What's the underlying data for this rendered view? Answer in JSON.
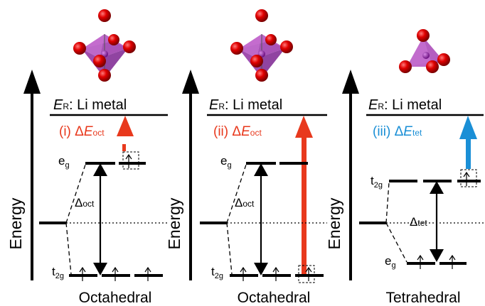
{
  "y_axis_label": "Energy",
  "panels": [
    {
      "reference_E": "E",
      "reference_sub": "R",
      "reference_text": ": Li metal",
      "transition_prefix": "(i) Δ",
      "transition_E": "E",
      "transition_sub": "oct",
      "transition_color": "#e8391d",
      "split_label": "Δ",
      "split_sub": "oct",
      "upper_level": "e",
      "upper_sub": "g",
      "lower_level": "t",
      "lower_sub": "2g",
      "geometry_label": "Octahedral"
    },
    {
      "reference_E": "E",
      "reference_sub": "R",
      "reference_text": ": Li metal",
      "transition_prefix": "(ii) Δ",
      "transition_E": "E",
      "transition_sub": "oct",
      "transition_color": "#e8391d",
      "split_label": "Δ",
      "split_sub": "oct",
      "upper_level": "e",
      "upper_sub": "g",
      "lower_level": "t",
      "lower_sub": "2g",
      "geometry_label": "Octahedral"
    },
    {
      "reference_E": "E",
      "reference_sub": "R",
      "reference_text": ": Li metal",
      "transition_prefix": "(iii) Δ",
      "transition_E": "E",
      "transition_sub": "tet",
      "transition_color": "#1a8fd6",
      "split_label": "Δ",
      "split_sub": "tet",
      "upper_level": "t",
      "upper_sub": "2g",
      "lower_level": "e",
      "lower_sub": "g",
      "geometry_label": "Tetrahedral"
    }
  ],
  "colors": {
    "line": "#000000",
    "atom": "#d40000",
    "polyhedron": "#a63fb0",
    "center_atom": "#8a1a9a"
  },
  "icons": [
    "octahedron-icon",
    "octahedron-icon",
    "tetrahedron-icon",
    "spin-up-arrow-icon"
  ]
}
